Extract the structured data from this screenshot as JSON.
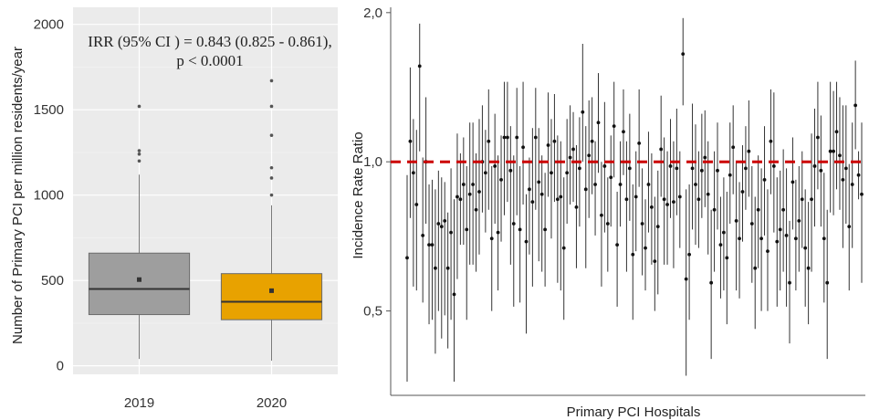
{
  "chart_data": [
    {
      "type": "box",
      "categories": [
        "2019",
        "2020"
      ],
      "ylabel": "Number of Primary PCI per million residents/year",
      "ylim": [
        -50,
        2100
      ],
      "yticks": [
        "0",
        "500",
        "1000",
        "1500",
        "2000"
      ],
      "annotation_line1": "IRR (95% CI ) = 0.843 (0.825 - 0.861),",
      "annotation_line2": "p < 0.0001",
      "grid": true,
      "boxes": [
        {
          "name": "2019",
          "color": "#9e9e9e",
          "q1": 300,
          "median": 450,
          "q3": 660,
          "whisker_low": 40,
          "whisker_high": 1120,
          "mean": 505,
          "outliers": [
            1200,
            1240,
            1260,
            1520
          ]
        },
        {
          "name": "2020",
          "color": "#e8a200",
          "q1": 270,
          "median": 375,
          "q3": 540,
          "whisker_low": 30,
          "whisker_high": 940,
          "mean": 440,
          "outliers": [
            1000,
            1100,
            1160,
            1350,
            1520,
            1670
          ]
        }
      ]
    },
    {
      "type": "forest",
      "xlabel": "Primary PCI Hospitals",
      "ylabel": "Incidence Rate Ratio",
      "yscale": "log",
      "ylim": [
        0.36,
        2.05
      ],
      "yticks": [
        "0,5",
        "1,0",
        "2,0"
      ],
      "reference_line": {
        "value": 1.0,
        "color": "#cc0000",
        "style": "dashed"
      },
      "hospitals": [
        {
          "est": 0.64,
          "lo": 0.36,
          "hi": 0.94
        },
        {
          "est": 1.1,
          "lo": 0.77,
          "hi": 1.55
        },
        {
          "est": 0.95,
          "lo": 0.56,
          "hi": 1.22
        },
        {
          "est": 0.82,
          "lo": 0.55,
          "hi": 1.16
        },
        {
          "est": 1.56,
          "lo": 1.05,
          "hi": 1.9
        },
        {
          "est": 0.71,
          "lo": 0.52,
          "hi": 1.02
        },
        {
          "est": 1.0,
          "lo": 0.75,
          "hi": 1.35
        },
        {
          "est": 0.68,
          "lo": 0.47,
          "hi": 0.9
        },
        {
          "est": 0.68,
          "lo": 0.48,
          "hi": 0.92
        },
        {
          "est": 0.61,
          "lo": 0.41,
          "hi": 0.88
        },
        {
          "est": 0.75,
          "lo": 0.5,
          "hi": 0.96
        },
        {
          "est": 0.74,
          "lo": 0.44,
          "hi": 0.93
        },
        {
          "est": 0.76,
          "lo": 0.49,
          "hi": 0.91
        },
        {
          "est": 0.61,
          "lo": 0.42,
          "hi": 0.79
        },
        {
          "est": 0.72,
          "lo": 0.48,
          "hi": 0.97
        },
        {
          "est": 0.54,
          "lo": 0.36,
          "hi": 0.84
        },
        {
          "est": 0.85,
          "lo": 0.58,
          "hi": 1.14
        },
        {
          "est": 0.84,
          "lo": 0.68,
          "hi": 1.04
        },
        {
          "est": 0.9,
          "lo": 0.68,
          "hi": 1.12
        },
        {
          "est": 0.73,
          "lo": 0.48,
          "hi": 0.98
        },
        {
          "est": 0.86,
          "lo": 0.62,
          "hi": 1.2
        },
        {
          "est": 0.9,
          "lo": 0.62,
          "hi": 1.2
        },
        {
          "est": 0.8,
          "lo": 0.6,
          "hi": 1.04
        },
        {
          "est": 0.87,
          "lo": 0.65,
          "hi": 1.22
        },
        {
          "est": 1.0,
          "lo": 0.79,
          "hi": 1.3
        },
        {
          "est": 0.95,
          "lo": 0.72,
          "hi": 1.16
        },
        {
          "est": 1.1,
          "lo": 0.8,
          "hi": 1.4
        },
        {
          "est": 0.7,
          "lo": 0.5,
          "hi": 0.98
        },
        {
          "est": 0.98,
          "lo": 0.75,
          "hi": 1.25
        },
        {
          "est": 0.72,
          "lo": 0.55,
          "hi": 1.03
        },
        {
          "est": 0.92,
          "lo": 0.69,
          "hi": 1.13
        },
        {
          "est": 1.12,
          "lo": 0.78,
          "hi": 1.45
        },
        {
          "est": 1.12,
          "lo": 0.83,
          "hi": 1.45
        },
        {
          "est": 0.96,
          "lo": 0.62,
          "hi": 1.18
        },
        {
          "est": 0.75,
          "lo": 0.51,
          "hi": 1.03
        },
        {
          "est": 1.12,
          "lo": 0.78,
          "hi": 1.41
        },
        {
          "est": 0.73,
          "lo": 0.52,
          "hi": 0.98
        },
        {
          "est": 1.07,
          "lo": 0.82,
          "hi": 1.45
        },
        {
          "est": 0.69,
          "lo": 0.45,
          "hi": 0.86
        },
        {
          "est": 0.88,
          "lo": 0.65,
          "hi": 1.02
        },
        {
          "est": 0.83,
          "lo": 0.56,
          "hi": 1.17
        },
        {
          "est": 1.12,
          "lo": 0.8,
          "hi": 1.41
        },
        {
          "est": 0.91,
          "lo": 0.63,
          "hi": 1.17
        },
        {
          "est": 0.86,
          "lo": 0.6,
          "hi": 1.03
        },
        {
          "est": 0.73,
          "lo": 0.56,
          "hi": 0.95
        },
        {
          "est": 1.08,
          "lo": 0.85,
          "hi": 1.38
        },
        {
          "est": 0.95,
          "lo": 0.7,
          "hi": 1.22
        },
        {
          "est": 1.1,
          "lo": 0.83,
          "hi": 1.37
        },
        {
          "est": 0.84,
          "lo": 0.57,
          "hi": 1.13
        },
        {
          "est": 0.85,
          "lo": 0.55,
          "hi": 1.1
        },
        {
          "est": 0.67,
          "lo": 0.48,
          "hi": 0.93
        },
        {
          "est": 0.95,
          "lo": 0.75,
          "hi": 1.22
        },
        {
          "est": 1.02,
          "lo": 0.82,
          "hi": 1.3
        },
        {
          "est": 1.06,
          "lo": 0.83,
          "hi": 1.26
        },
        {
          "est": 0.81,
          "lo": 0.61,
          "hi": 1.08
        },
        {
          "est": 0.97,
          "lo": 0.74,
          "hi": 1.23
        },
        {
          "est": 1.26,
          "lo": 1.0,
          "hi": 1.73
        },
        {
          "est": 0.88,
          "lo": 0.61,
          "hi": 1.18
        },
        {
          "est": 1.03,
          "lo": 0.77,
          "hi": 1.33
        },
        {
          "est": 1.1,
          "lo": 0.86,
          "hi": 1.35
        },
        {
          "est": 0.9,
          "lo": 0.71,
          "hi": 1.1
        },
        {
          "est": 1.2,
          "lo": 0.95,
          "hi": 1.51
        },
        {
          "est": 0.78,
          "lo": 0.56,
          "hi": 1.0
        },
        {
          "est": 0.98,
          "lo": 0.72,
          "hi": 1.32
        },
        {
          "est": 0.75,
          "lo": 0.6,
          "hi": 0.93
        },
        {
          "est": 0.93,
          "lo": 0.74,
          "hi": 1.13
        },
        {
          "est": 1.18,
          "lo": 0.93,
          "hi": 1.45
        },
        {
          "est": 0.68,
          "lo": 0.51,
          "hi": 0.87
        },
        {
          "est": 0.9,
          "lo": 0.74,
          "hi": 1.1
        },
        {
          "est": 1.15,
          "lo": 0.94,
          "hi": 1.4
        },
        {
          "est": 0.84,
          "lo": 0.6,
          "hi": 1.1
        },
        {
          "est": 0.97,
          "lo": 0.76,
          "hi": 1.25
        },
        {
          "est": 0.65,
          "lo": 0.48,
          "hi": 0.9
        },
        {
          "est": 0.85,
          "lo": 0.66,
          "hi": 1.05
        },
        {
          "est": 1.09,
          "lo": 0.89,
          "hi": 1.4
        },
        {
          "est": 0.75,
          "lo": 0.59,
          "hi": 0.97
        },
        {
          "est": 0.67,
          "lo": 0.55,
          "hi": 0.84
        },
        {
          "est": 0.9,
          "lo": 0.72,
          "hi": 1.15
        },
        {
          "est": 0.81,
          "lo": 0.62,
          "hi": 1.04
        },
        {
          "est": 0.63,
          "lo": 0.5,
          "hi": 0.85
        },
        {
          "est": 0.74,
          "lo": 0.54,
          "hi": 0.96
        },
        {
          "est": 1.06,
          "lo": 0.85,
          "hi": 1.36
        },
        {
          "est": 0.84,
          "lo": 0.62,
          "hi": 1.12
        },
        {
          "est": 0.82,
          "lo": 0.62,
          "hi": 1.05
        },
        {
          "est": 0.98,
          "lo": 0.77,
          "hi": 1.22
        },
        {
          "est": 0.83,
          "lo": 0.61,
          "hi": 1.1
        },
        {
          "est": 0.97,
          "lo": 0.78,
          "hi": 1.28
        },
        {
          "est": 0.85,
          "lo": 0.67,
          "hi": 1.05
        },
        {
          "est": 1.65,
          "lo": 1.3,
          "hi": 1.95
        },
        {
          "est": 0.58,
          "lo": 0.37,
          "hi": 0.88
        },
        {
          "est": 0.65,
          "lo": 0.48,
          "hi": 0.9
        },
        {
          "est": 0.97,
          "lo": 0.73,
          "hi": 1.31
        },
        {
          "est": 0.9,
          "lo": 0.68,
          "hi": 1.19
        },
        {
          "est": 0.84,
          "lo": 0.67,
          "hi": 1.05
        },
        {
          "est": 0.96,
          "lo": 0.77,
          "hi": 1.25
        },
        {
          "est": 1.02,
          "lo": 0.81,
          "hi": 1.27
        },
        {
          "est": 0.86,
          "lo": 0.65,
          "hi": 1.1
        },
        {
          "est": 0.57,
          "lo": 0.4,
          "hi": 0.8
        },
        {
          "est": 0.8,
          "lo": 0.6,
          "hi": 1.05
        },
        {
          "est": 0.96,
          "lo": 0.73,
          "hi": 1.2
        },
        {
          "est": 0.68,
          "lo": 0.53,
          "hi": 0.85
        },
        {
          "est": 0.72,
          "lo": 0.55,
          "hi": 0.93
        },
        {
          "est": 0.64,
          "lo": 0.47,
          "hi": 0.87
        },
        {
          "est": 0.94,
          "lo": 0.75,
          "hi": 1.2
        },
        {
          "est": 1.07,
          "lo": 0.86,
          "hi": 1.3
        },
        {
          "est": 0.76,
          "lo": 0.55,
          "hi": 1.0
        },
        {
          "est": 0.7,
          "lo": 0.53,
          "hi": 0.91
        },
        {
          "est": 0.87,
          "lo": 0.69,
          "hi": 1.08
        },
        {
          "est": 0.97,
          "lo": 0.8,
          "hi": 1.18
        },
        {
          "est": 1.05,
          "lo": 0.85,
          "hi": 1.33
        },
        {
          "est": 0.75,
          "lo": 0.57,
          "hi": 0.98
        },
        {
          "est": 0.61,
          "lo": 0.46,
          "hi": 0.85
        },
        {
          "est": 0.8,
          "lo": 0.61,
          "hi": 1.03
        },
        {
          "est": 0.7,
          "lo": 0.5,
          "hi": 0.97
        },
        {
          "est": 0.92,
          "lo": 0.71,
          "hi": 1.18
        },
        {
          "est": 0.66,
          "lo": 0.5,
          "hi": 0.88
        },
        {
          "est": 1.1,
          "lo": 0.86,
          "hi": 1.4
        },
        {
          "est": 0.98,
          "lo": 0.72,
          "hi": 1.38
        },
        {
          "est": 0.69,
          "lo": 0.51,
          "hi": 0.93
        },
        {
          "est": 0.73,
          "lo": 0.55,
          "hi": 0.96
        },
        {
          "est": 0.8,
          "lo": 0.6,
          "hi": 1.06
        },
        {
          "est": 0.71,
          "lo": 0.51,
          "hi": 0.97
        },
        {
          "est": 0.57,
          "lo": 0.43,
          "hi": 0.76
        },
        {
          "est": 0.91,
          "lo": 0.73,
          "hi": 1.12
        },
        {
          "est": 0.7,
          "lo": 0.55,
          "hi": 0.92
        },
        {
          "est": 0.76,
          "lo": 0.6,
          "hi": 0.98
        },
        {
          "est": 0.84,
          "lo": 0.67,
          "hi": 1.05
        },
        {
          "est": 0.67,
          "lo": 0.51,
          "hi": 0.88
        },
        {
          "est": 0.61,
          "lo": 0.47,
          "hi": 0.83
        },
        {
          "est": 0.84,
          "lo": 0.6,
          "hi": 1.14
        },
        {
          "est": 0.98,
          "lo": 0.74,
          "hi": 1.28
        },
        {
          "est": 1.12,
          "lo": 0.88,
          "hi": 1.45
        },
        {
          "est": 0.96,
          "lo": 0.74,
          "hi": 1.24
        },
        {
          "est": 0.7,
          "lo": 0.52,
          "hi": 0.95
        },
        {
          "est": 0.57,
          "lo": 0.4,
          "hi": 0.8
        },
        {
          "est": 1.05,
          "lo": 0.79,
          "hi": 1.45
        },
        {
          "est": 1.05,
          "lo": 0.78,
          "hi": 1.39
        },
        {
          "est": 1.15,
          "lo": 0.88,
          "hi": 1.45
        },
        {
          "est": 1.03,
          "lo": 0.8,
          "hi": 1.35
        },
        {
          "est": 0.92,
          "lo": 0.67,
          "hi": 1.3
        },
        {
          "est": 0.97,
          "lo": 0.75,
          "hi": 1.3
        },
        {
          "est": 0.74,
          "lo": 0.55,
          "hi": 0.99
        },
        {
          "est": 0.9,
          "lo": 0.67,
          "hi": 1.2
        },
        {
          "est": 1.3,
          "lo": 1.06,
          "hi": 1.6
        },
        {
          "est": 0.94,
          "lo": 0.84,
          "hi": 1.05
        },
        {
          "est": 0.86,
          "lo": 0.57,
          "hi": 1.2
        }
      ]
    }
  ]
}
